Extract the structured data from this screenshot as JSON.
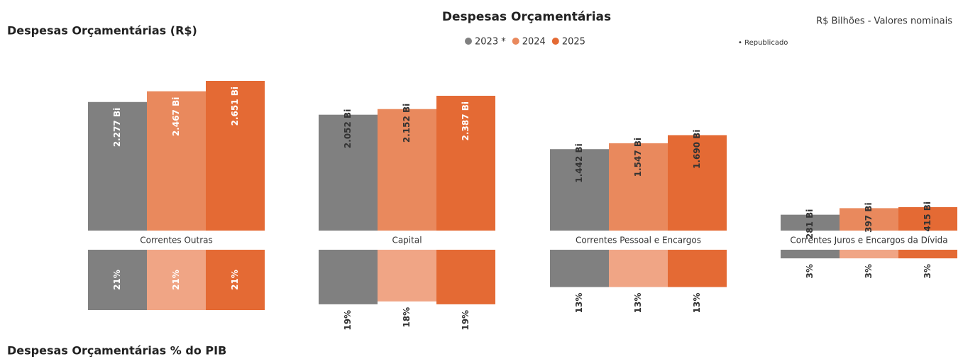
{
  "header": {
    "title": "Despesas Orçamentárias",
    "left_title": "Despesas Orçamentárias (R$)",
    "unit_note": "R$ Bilhões - Valores nominais",
    "footnote": "• Republicado",
    "bottom_title": "Despesas Orçamentárias % do PIB"
  },
  "chart_data": [
    {
      "type": "bar",
      "categories": [
        "Correntes Outras",
        "Capital",
        "Correntes Pessoal e Encargos",
        "Correntes Juros e Encargos da Dívida"
      ],
      "series": [
        {
          "name": "2023 *",
          "color": "#808080",
          "values": [
            2277,
            2052,
            1442,
            281
          ],
          "value_labels": [
            "2.277 Bi",
            "2.052 Bi",
            "1.442 Bi",
            "281 Bi"
          ]
        },
        {
          "name": "2024",
          "color": "#e9895d",
          "values": [
            2467,
            2152,
            1547,
            397
          ],
          "value_labels": [
            "2.467 Bi",
            "2.152 Bi",
            "1.547 Bi",
            "397 Bi"
          ]
        },
        {
          "name": "2025",
          "color": "#e46a34",
          "values": [
            2651,
            2387,
            1690,
            415
          ],
          "value_labels": [
            "2.651 Bi",
            "2.387 Bi",
            "1.690 Bi",
            "415 Bi"
          ]
        }
      ]
    },
    {
      "type": "bar_down",
      "series": [
        {
          "color": "#808080",
          "values": [
            21,
            19,
            13,
            3
          ],
          "value_labels": [
            "21%",
            "19%",
            "13%",
            "3%"
          ]
        },
        {
          "color": "#f0a585",
          "values": [
            21,
            18,
            13,
            3
          ],
          "value_labels": [
            "21%",
            "18%",
            "13%",
            "3%"
          ]
        },
        {
          "color": "#e46a34",
          "values": [
            21,
            19,
            13,
            3
          ],
          "value_labels": [
            "21%",
            "19%",
            "13%",
            "3%"
          ]
        }
      ]
    }
  ]
}
